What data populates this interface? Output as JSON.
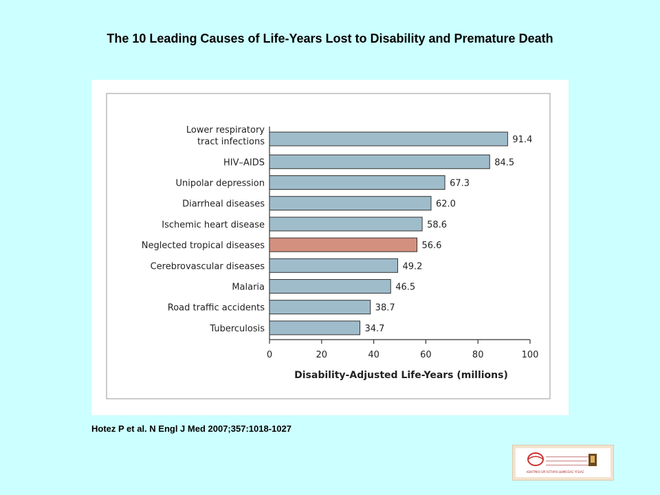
{
  "slide": {
    "title": "The 10 Leading Causes of Life-Years Lost to Disability and Premature Death",
    "citation": "Hotez P et al. N Engl J Med 2007;357:1018-1027",
    "logo_caption": "ΚΕΝΤΡΙΚΟ ΕΡΓΑΣΤΗΡΙΟ ΔΗΜΟΣΙΑΣ ΥΓΕΙΑΣ"
  },
  "colors": {
    "background": "#ccffff",
    "bar": "#9fbccb",
    "highlight_bar": "#d4907f",
    "bar_stroke": "#333333"
  },
  "chart_data": {
    "type": "bar",
    "orientation": "horizontal",
    "categories": [
      [
        "Lower respiratory",
        "tract infections"
      ],
      [
        "HIV–AIDS"
      ],
      [
        "Unipolar depression"
      ],
      [
        "Diarrheal diseases"
      ],
      [
        "Ischemic heart disease"
      ],
      [
        "Neglected tropical diseases"
      ],
      [
        "Cerebrovascular diseases"
      ],
      [
        "Malaria"
      ],
      [
        "Road traffic accidents"
      ],
      [
        "Tuberculosis"
      ]
    ],
    "values": [
      91.4,
      84.5,
      67.3,
      62.0,
      58.6,
      56.6,
      49.2,
      46.5,
      38.7,
      34.7
    ],
    "value_labels": [
      "91.4",
      "84.5",
      "67.3",
      "62.0",
      "58.6",
      "56.6",
      "49.2",
      "46.5",
      "38.7",
      "34.7"
    ],
    "highlight_index": 5,
    "xlabel": "Disability-Adjusted Life-Years (millions)",
    "xlim": [
      0,
      100
    ],
    "xticks": [
      0,
      20,
      40,
      60,
      80,
      100
    ],
    "grid": false
  }
}
